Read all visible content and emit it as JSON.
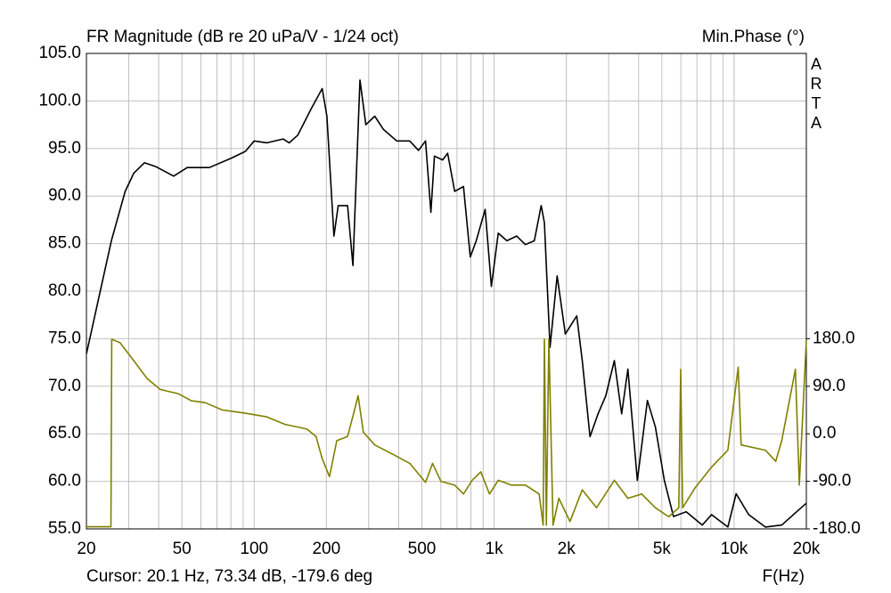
{
  "chart_data": {
    "type": "line",
    "title": "FR Magnitude (dB re 20 uPa/V - 1/24 oct)",
    "y2label": "Min.Phase (°)",
    "watermark": "ARTA",
    "xlabel": "F(Hz)",
    "cursor_text": "Cursor: 20.1 Hz, 73.34 dB, -179.6 deg",
    "xscale": "log",
    "grid": true,
    "grid_color": "#c0c0c0",
    "xlim": [
      20,
      20000
    ],
    "xticks": [
      20,
      50,
      100,
      200,
      500,
      {
        "value": 1000,
        "label": "1k"
      },
      {
        "value": 2000,
        "label": "2k"
      },
      {
        "value": 5000,
        "label": "5k"
      },
      {
        "value": 10000,
        "label": "10k"
      },
      {
        "value": 20000,
        "label": "20k"
      }
    ],
    "xgrid": [
      30,
      40,
      60,
      70,
      80,
      90,
      300,
      400,
      600,
      700,
      800,
      900,
      3000,
      4000,
      6000,
      7000,
      8000,
      9000
    ],
    "ylim": [
      55,
      105
    ],
    "yticks": [
      {
        "value": 55,
        "label": "55.0"
      },
      {
        "value": 60,
        "label": "60.0"
      },
      {
        "value": 65,
        "label": "65.0"
      },
      {
        "value": 70,
        "label": "70.0"
      },
      {
        "value": 75,
        "label": "75.0"
      },
      {
        "value": 80,
        "label": "80.0"
      },
      {
        "value": 85,
        "label": "85.0"
      },
      {
        "value": 90,
        "label": "90.0"
      },
      {
        "value": 95,
        "label": "95.0"
      },
      {
        "value": 100,
        "label": "100.0"
      },
      {
        "value": 105,
        "label": "105.0"
      }
    ],
    "y2lim": [
      -180,
      720
    ],
    "y2ticks": [
      {
        "value": -180,
        "label": "-180.0"
      },
      {
        "value": -90,
        "label": "-90.0"
      },
      {
        "value": 0,
        "label": "0.0"
      },
      {
        "value": 90,
        "label": "90.0"
      },
      {
        "value": 180,
        "label": "180.0"
      }
    ],
    "series": [
      {
        "color": "#000000",
        "x": [
          20,
          22.3,
          25.4,
          29,
          31.5,
          34.9,
          38.9,
          46.2,
          52.6,
          65,
          80.5,
          91.9,
          100,
          113,
          132,
          140,
          152,
          173,
          192,
          201,
          215,
          224,
          245,
          258,
          276,
          292,
          318,
          346,
          393,
          445,
          484,
          518,
          545,
          564,
          610,
          640,
          685,
          745,
          795,
          842,
          917,
          974,
          1040,
          1130,
          1240,
          1350,
          1470,
          1570,
          1620,
          1710,
          1830,
          1980,
          2210,
          2330,
          2510,
          2710,
          2920,
          3170,
          3400,
          3610,
          3950,
          4350,
          4700,
          5120,
          5590,
          6310,
          7370,
          8050,
          9420,
          10200,
          11500,
          13500,
          15800,
          18200,
          20000
        ],
        "values": [
          73.4,
          78.8,
          85.3,
          90.5,
          92.4,
          93.5,
          93.1,
          92.1,
          93,
          93,
          94,
          94.7,
          95.8,
          95.6,
          96,
          95.6,
          96.4,
          99.2,
          101.3,
          98.4,
          85.8,
          89,
          89,
          82.7,
          102.2,
          97.5,
          98.4,
          97,
          95.8,
          95.8,
          94.8,
          95.8,
          88.3,
          94.2,
          93.8,
          94.5,
          90.5,
          91,
          83.6,
          85.3,
          88.6,
          80.5,
          86.1,
          85.3,
          85.8,
          84.9,
          85.3,
          89,
          87.2,
          74.1,
          81.6,
          75.5,
          77.4,
          72.7,
          64.7,
          67.1,
          69,
          72.7,
          67.1,
          71.8,
          60.1,
          68.5,
          65.7,
          60.1,
          56.3,
          56.8,
          55.4,
          56.5,
          55.2,
          58.7,
          56.5,
          55.2,
          55.4,
          56.8,
          57.7
        ]
      },
      {
        "color": "#808000",
        "axis": "y2",
        "x": [
          20,
          25.3,
          25.5,
          27.6,
          31.5,
          35.8,
          40.6,
          48.2,
          54.7,
          62.4,
          73.8,
          91.9,
          113,
          134,
          166,
          181,
          192,
          206,
          221,
          245,
          262,
          271,
          285,
          318,
          375,
          445,
          518,
          554,
          600,
          685,
          745,
          810,
          880,
          957,
          1040,
          1180,
          1350,
          1540,
          1600,
          1620,
          1650,
          1690,
          1760,
          1860,
          2070,
          2330,
          2670,
          3170,
          3610,
          4120,
          4700,
          5340,
          5880,
          5990,
          6100,
          6880,
          8050,
          9420,
          10400,
          10700,
          13500,
          14900,
          15800,
          18000,
          18700,
          20000
        ],
        "values": [
          -176,
          -176,
          179,
          172.5,
          138.6,
          104.7,
          84,
          76,
          62.5,
          59,
          45,
          39,
          32,
          18,
          9,
          -5,
          -47,
          -81,
          -13,
          -5,
          45,
          72,
          3,
          -21,
          -38,
          -56,
          -92,
          -56,
          -90,
          -97,
          -114,
          -88,
          -72,
          -114,
          -88,
          -97,
          -97,
          -114,
          -173,
          179,
          -173,
          179,
          -173,
          -122,
          -166,
          -106,
          -140,
          -88,
          -122,
          -114,
          -140,
          -157,
          -140,
          122,
          -140,
          -102,
          -63,
          -31,
          126,
          -21,
          -31,
          -52,
          -13,
          122,
          -97,
          178
        ]
      }
    ]
  }
}
